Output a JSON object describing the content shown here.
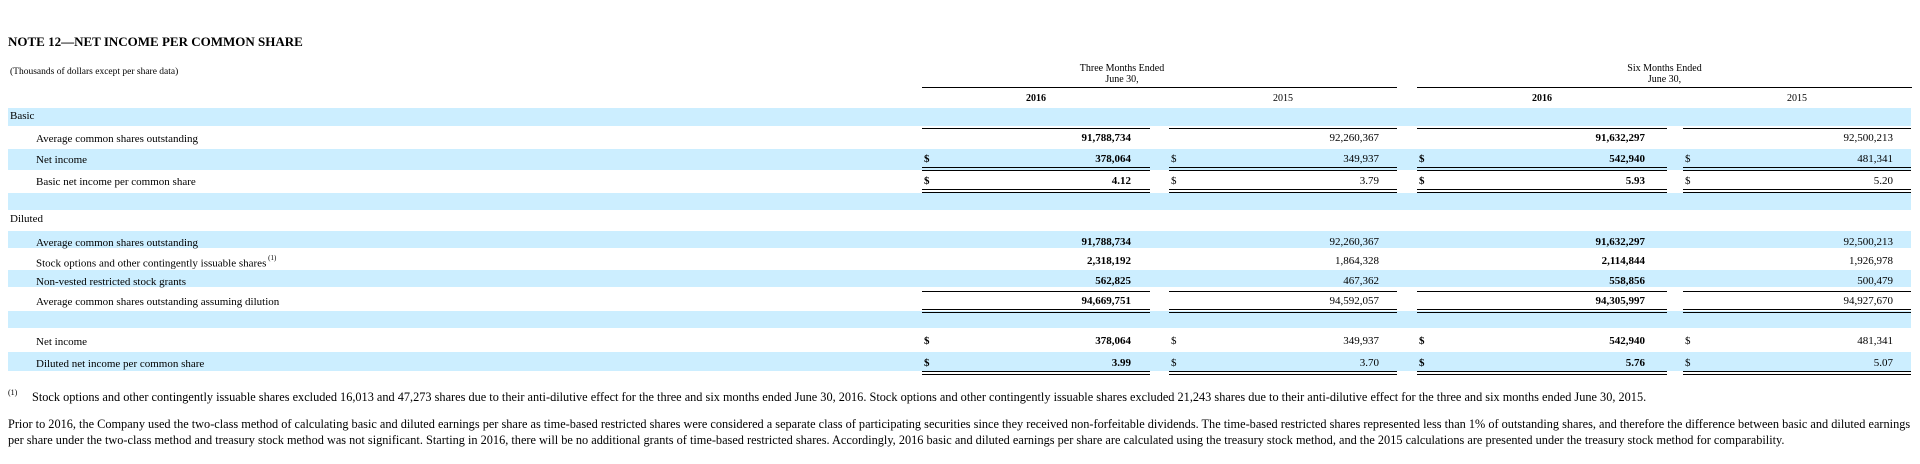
{
  "title": "NOTE 12—NET INCOME PER COMMON SHARE",
  "units_note": "(Thousands of dollars except per share data)",
  "periods": [
    {
      "line1": "Three Months Ended",
      "line2": "June 30,"
    },
    {
      "line1": "Six Months Ended",
      "line2": "June 30,"
    }
  ],
  "years": [
    "2016",
    "2015",
    "2016",
    "2015"
  ],
  "currency": "$",
  "sections": {
    "basic": "Basic",
    "diluted": "Diluted"
  },
  "rows": [
    {
      "label": "Average common shares outstanding",
      "values": [
        "91,788,734",
        "92,260,367",
        "91,632,297",
        "92,500,213"
      ]
    },
    {
      "label": "Net income",
      "values": [
        "378,064",
        "349,937",
        "542,940",
        "481,341"
      ]
    },
    {
      "label": "Basic net income per common share",
      "values": [
        "4.12",
        "3.79",
        "5.93",
        "5.20"
      ]
    },
    {
      "label": "Average common shares outstanding",
      "values": [
        "91,788,734",
        "92,260,367",
        "91,632,297",
        "92,500,213"
      ]
    },
    {
      "label": "Stock options and other contingently issuable shares",
      "sup": "(1)",
      "values": [
        "2,318,192",
        "1,864,328",
        "2,114,844",
        "1,926,978"
      ]
    },
    {
      "label": "Non-vested restricted stock grants",
      "values": [
        "562,825",
        "467,362",
        "558,856",
        "500,479"
      ]
    },
    {
      "label": "Average common shares outstanding assuming dilution",
      "values": [
        "94,669,751",
        "94,592,057",
        "94,305,997",
        "94,927,670"
      ]
    },
    {
      "label": "Net income",
      "values": [
        "378,064",
        "349,937",
        "542,940",
        "481,341"
      ]
    },
    {
      "label": "Diluted net income per common share",
      "values": [
        "3.99",
        "3.70",
        "5.76",
        "5.07"
      ]
    }
  ],
  "footnote": {
    "marker": "(1)",
    "text": "Stock options and other contingently issuable shares excluded 16,013 and 47,273 shares due to their anti-dilutive effect for the three and six months ended June 30, 2016. Stock options and other contingently issuable shares excluded 21,243 shares due to their anti-dilutive effect for the three and six months ended June 30, 2015."
  },
  "paragraph": "Prior to 2016, the Company used the two-class method of calculating basic and diluted earnings per share as time-based restricted shares were considered a separate class of participating securities since they received non-forfeitable dividends. The time-based restricted shares represented less than 1% of outstanding shares, and therefore the difference between basic and diluted earnings per share under the two-class method and treasury stock method was not significant. Starting in 2016, there will be no additional grants of time-based restricted shares. Accordingly, 2016 basic and diluted earnings per share are calculated using the treasury stock method, and the 2015 calculations are presented under the treasury stock method for comparability."
}
